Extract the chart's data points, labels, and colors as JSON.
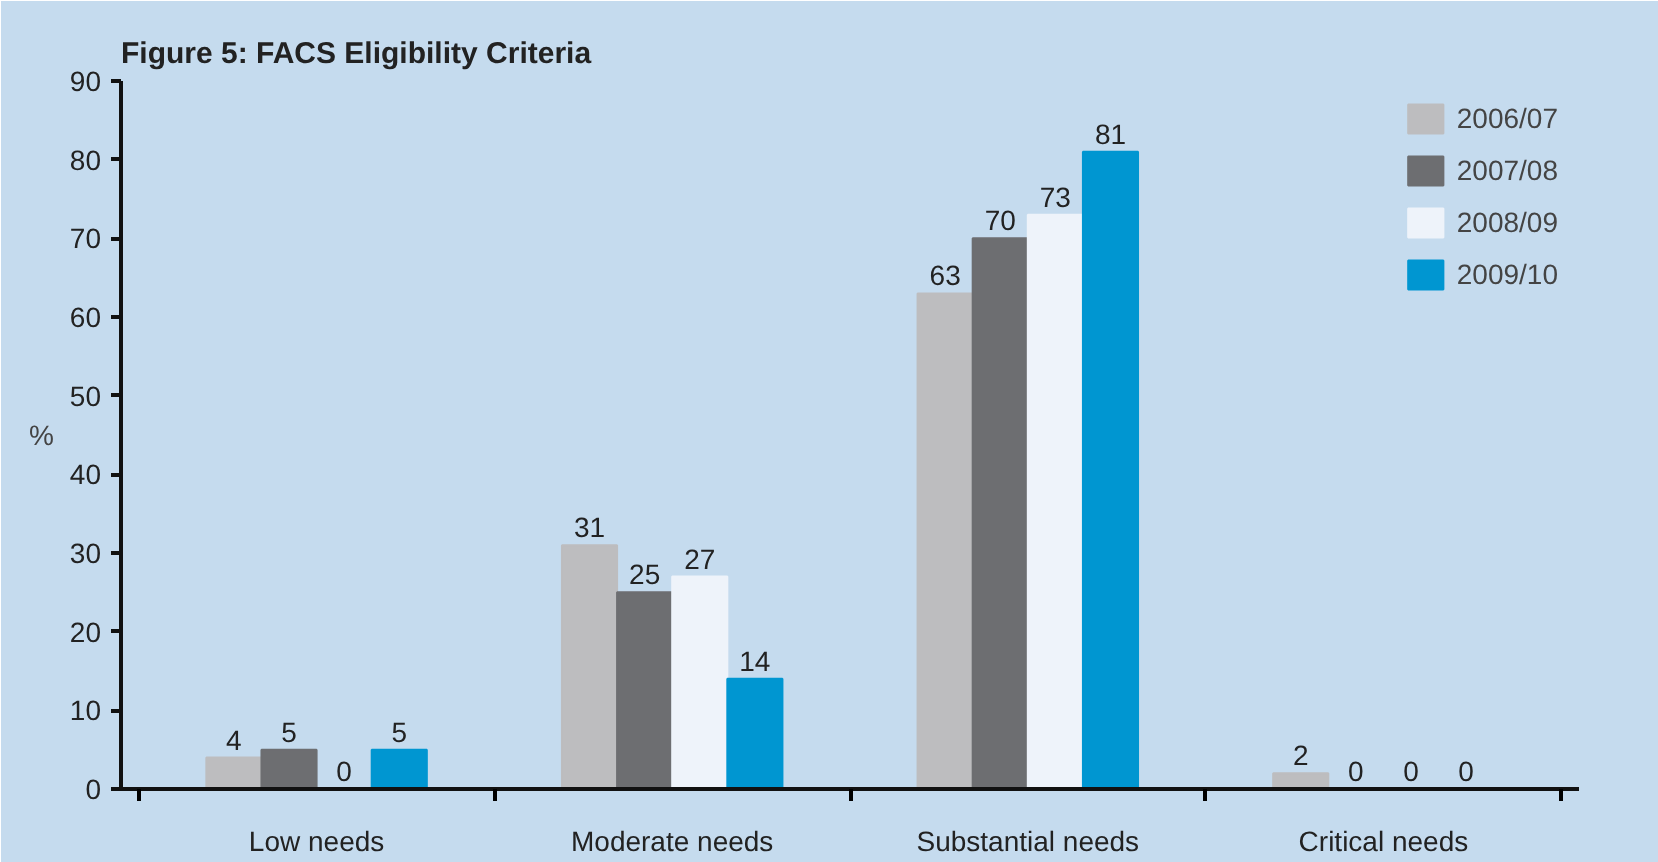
{
  "chart_data": {
    "type": "bar",
    "title": "Figure 5: FACS Eligibility Criteria",
    "ylabel": "%",
    "categories": [
      "Low needs",
      "Moderate needs",
      "Substantial needs",
      "Critical needs"
    ],
    "series": [
      {
        "name": "2006/07",
        "color": "#bdbdbf",
        "values": [
          4,
          31,
          63,
          2
        ]
      },
      {
        "name": "2007/08",
        "color": "#6d6e71",
        "values": [
          5,
          25,
          70,
          0
        ]
      },
      {
        "name": "2008/09",
        "color": "#eef3fa",
        "values": [
          0,
          27,
          73,
          0
        ]
      },
      {
        "name": "2009/10",
        "color": "#0096d1",
        "values": [
          5,
          14,
          81,
          0
        ]
      }
    ],
    "ylim": [
      0,
      90
    ],
    "yticks": [
      0,
      10,
      20,
      30,
      40,
      50,
      60,
      70,
      80,
      90
    ],
    "data_labels": true,
    "legend": "top right",
    "grid": false
  }
}
